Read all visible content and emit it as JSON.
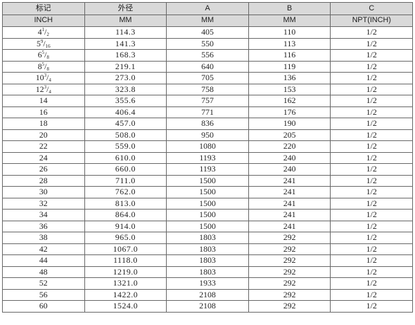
{
  "headers": {
    "row1": [
      "标记",
      "外径",
      "A",
      "B",
      "C"
    ],
    "row2": [
      "INCH",
      "MM",
      "MM",
      "MM",
      "NPT(INCH)"
    ]
  },
  "rows": [
    {
      "size": {
        "whole": "4",
        "num": "1",
        "den": "2"
      },
      "od": "114.3",
      "a": "405",
      "b": "110",
      "c": "1/2"
    },
    {
      "size": {
        "whole": "5",
        "num": "9",
        "den": "16"
      },
      "od": "141.3",
      "a": "550",
      "b": "113",
      "c": "1/2"
    },
    {
      "size": {
        "whole": "6",
        "num": "5",
        "den": "8"
      },
      "od": "168.3",
      "a": "556",
      "b": "116",
      "c": "1/2"
    },
    {
      "size": {
        "whole": "8",
        "num": "5",
        "den": "8"
      },
      "od": "219.1",
      "a": "640",
      "b": "119",
      "c": "1/2"
    },
    {
      "size": {
        "whole": "10",
        "num": "3",
        "den": "4"
      },
      "od": "273.0",
      "a": "705",
      "b": "136",
      "c": "1/2"
    },
    {
      "size": {
        "whole": "12",
        "num": "3",
        "den": "4"
      },
      "od": "323.8",
      "a": "758",
      "b": "153",
      "c": "1/2"
    },
    {
      "size": "14",
      "od": "355.6",
      "a": "757",
      "b": "162",
      "c": "1/2"
    },
    {
      "size": "16",
      "od": "406.4",
      "a": "771",
      "b": "176",
      "c": "1/2"
    },
    {
      "size": "18",
      "od": "457.0",
      "a": "836",
      "b": "190",
      "c": "1/2"
    },
    {
      "size": "20",
      "od": "508.0",
      "a": "950",
      "b": "205",
      "c": "1/2"
    },
    {
      "size": "22",
      "od": "559.0",
      "a": "1080",
      "b": "220",
      "c": "1/2"
    },
    {
      "size": "24",
      "od": "610.0",
      "a": "1193",
      "b": "240",
      "c": "1/2"
    },
    {
      "size": "26",
      "od": "660.0",
      "a": "1193",
      "b": "240",
      "c": "1/2"
    },
    {
      "size": "28",
      "od": "711.0",
      "a": "1500",
      "b": "241",
      "c": "1/2"
    },
    {
      "size": "30",
      "od": "762.0",
      "a": "1500",
      "b": "241",
      "c": "1/2"
    },
    {
      "size": "32",
      "od": "813.0",
      "a": "1500",
      "b": "241",
      "c": "1/2"
    },
    {
      "size": "34",
      "od": "864.0",
      "a": "1500",
      "b": "241",
      "c": "1/2"
    },
    {
      "size": "36",
      "od": "914.0",
      "a": "1500",
      "b": "241",
      "c": "1/2"
    },
    {
      "size": "38",
      "od": "965.0",
      "a": "1803",
      "b": "292",
      "c": "1/2"
    },
    {
      "size": "42",
      "od": "1067.0",
      "a": "1803",
      "b": "292",
      "c": "1/2"
    },
    {
      "size": "44",
      "od": "1118.0",
      "a": "1803",
      "b": "292",
      "c": "1/2"
    },
    {
      "size": "48",
      "od": "1219.0",
      "a": "1803",
      "b": "292",
      "c": "1/2"
    },
    {
      "size": "52",
      "od": "1321.0",
      "a": "1933",
      "b": "292",
      "c": "1/2"
    },
    {
      "size": "56",
      "od": "1422.0",
      "a": "2108",
      "b": "292",
      "c": "1/2"
    },
    {
      "size": "60",
      "od": "1524.0",
      "a": "2108",
      "b": "292",
      "c": "1/2"
    }
  ]
}
